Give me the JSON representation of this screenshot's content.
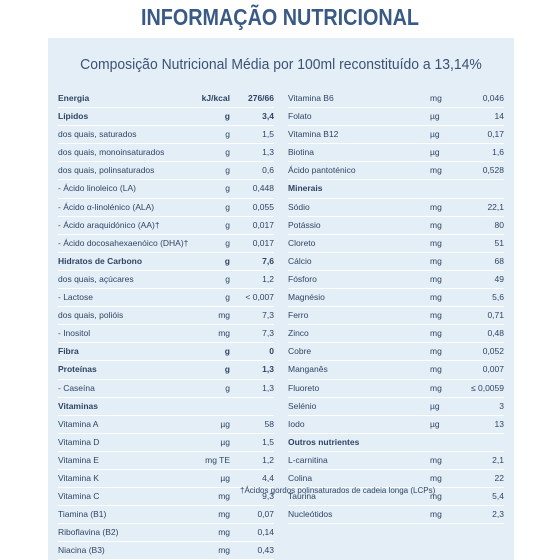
{
  "title": "INFORMAÇÃO NUTRICIONAL",
  "subtitle": "Composição Nutricional Média por 100ml reconstituído a 13,14%",
  "left_rows": [
    {
      "name": "Energia",
      "unit": "kJ/kcal",
      "value": "276/66",
      "bold": true
    },
    {
      "name": "Lípidos",
      "unit": "g",
      "value": "3,4",
      "bold": true
    },
    {
      "name": "dos quais, saturados",
      "unit": "g",
      "value": "1,5",
      "bold": false
    },
    {
      "name": "dos quais, monoinsaturados",
      "unit": "g",
      "value": "1,3",
      "bold": false
    },
    {
      "name": "dos quais, polinsaturados",
      "unit": "g",
      "value": "0,6",
      "bold": false
    },
    {
      "name": "- Ácido linoleico (LA)",
      "unit": "g",
      "value": "0,448",
      "bold": false
    },
    {
      "name": "- Ácido α-linolénico (ALA)",
      "unit": "g",
      "value": "0,055",
      "bold": false
    },
    {
      "name": "- Ácido araquidónico (AA)†",
      "unit": "g",
      "value": "0,017",
      "bold": false
    },
    {
      "name": "- Ácido docosahexaenóico (DHA)†",
      "unit": "g",
      "value": "0,017",
      "bold": false
    },
    {
      "name": "Hidratos de Carbono",
      "unit": "g",
      "value": "7,6",
      "bold": true
    },
    {
      "name": "dos quais, açúcares",
      "unit": "g",
      "value": "1,2",
      "bold": false
    },
    {
      "name": "- Lactose",
      "unit": "g",
      "value": "< 0,007",
      "bold": false
    },
    {
      "name": "dos quais, polióis",
      "unit": "mg",
      "value": "7,3",
      "bold": false
    },
    {
      "name": "- Inositol",
      "unit": "mg",
      "value": "7,3",
      "bold": false
    },
    {
      "name": "Fibra",
      "unit": "g",
      "value": "0",
      "bold": true
    },
    {
      "name": "Proteínas",
      "unit": "g",
      "value": "1,3",
      "bold": true
    },
    {
      "name": "- Caseína",
      "unit": "g",
      "value": "1,3",
      "bold": false
    },
    {
      "name": "Vitaminas",
      "unit": "",
      "value": "",
      "bold": true
    },
    {
      "name": "Vitamina A",
      "unit": "µg",
      "value": "58",
      "bold": false
    },
    {
      "name": "Vitamina D",
      "unit": "µg",
      "value": "1,5",
      "bold": false
    },
    {
      "name": "Vitamina E",
      "unit": "mg TE",
      "value": "1,2",
      "bold": false
    },
    {
      "name": "Vitamina K",
      "unit": "µg",
      "value": "4,4",
      "bold": false
    },
    {
      "name": "Vitamina C",
      "unit": "mg",
      "value": "9,3",
      "bold": false
    },
    {
      "name": "Tiamina (B1)",
      "unit": "mg",
      "value": "0,07",
      "bold": false
    },
    {
      "name": "Riboflavina (B2)",
      "unit": "mg",
      "value": "0,14",
      "bold": false
    },
    {
      "name": "Niacina (B3)",
      "unit": "mg",
      "value": "0,43",
      "bold": false
    }
  ],
  "right_rows": [
    {
      "name": "Vitamina B6",
      "unit": "mg",
      "value": "0,046",
      "bold": false
    },
    {
      "name": "Folato",
      "unit": "µg",
      "value": "14",
      "bold": false
    },
    {
      "name": "Vitamina B12",
      "unit": "µg",
      "value": "0,17",
      "bold": false
    },
    {
      "name": "Biotina",
      "unit": "µg",
      "value": "1,6",
      "bold": false
    },
    {
      "name": "Ácido pantoténico",
      "unit": "mg",
      "value": "0,528",
      "bold": false
    },
    {
      "name": "Minerais",
      "unit": "",
      "value": "",
      "bold": true
    },
    {
      "name": "Sódio",
      "unit": "mg",
      "value": "22,1",
      "bold": false
    },
    {
      "name": "Potássio",
      "unit": "mg",
      "value": "80",
      "bold": false
    },
    {
      "name": "Cloreto",
      "unit": "mg",
      "value": "51",
      "bold": false
    },
    {
      "name": "Cálcio",
      "unit": "mg",
      "value": "68",
      "bold": false
    },
    {
      "name": "Fósforo",
      "unit": "mg",
      "value": "49",
      "bold": false
    },
    {
      "name": "Magnésio",
      "unit": "mg",
      "value": "5,6",
      "bold": false
    },
    {
      "name": "Ferro",
      "unit": "mg",
      "value": "0,71",
      "bold": false
    },
    {
      "name": "Zinco",
      "unit": "mg",
      "value": "0,48",
      "bold": false
    },
    {
      "name": "Cobre",
      "unit": "mg",
      "value": "0,052",
      "bold": false
    },
    {
      "name": "Manganês",
      "unit": "mg",
      "value": "0,007",
      "bold": false
    },
    {
      "name": "Fluoreto",
      "unit": "mg",
      "value": "≤ 0,0059",
      "bold": false
    },
    {
      "name": "Selénio",
      "unit": "µg",
      "value": "3",
      "bold": false
    },
    {
      "name": "Iodo",
      "unit": "µg",
      "value": "13",
      "bold": false
    },
    {
      "name": "Outros nutrientes",
      "unit": "",
      "value": "",
      "bold": true
    },
    {
      "name": "L-carnitina",
      "unit": "mg",
      "value": "2,1",
      "bold": false
    },
    {
      "name": "Colina",
      "unit": "mg",
      "value": "22",
      "bold": false
    },
    {
      "name": "Taurina",
      "unit": "mg",
      "value": "5,4",
      "bold": false
    },
    {
      "name": "Nucleótidos",
      "unit": "mg",
      "value": "2,3",
      "bold": false
    }
  ],
  "footnote": "†Ácidos gordos polinsaturados de cadeia longa (LCPs)"
}
